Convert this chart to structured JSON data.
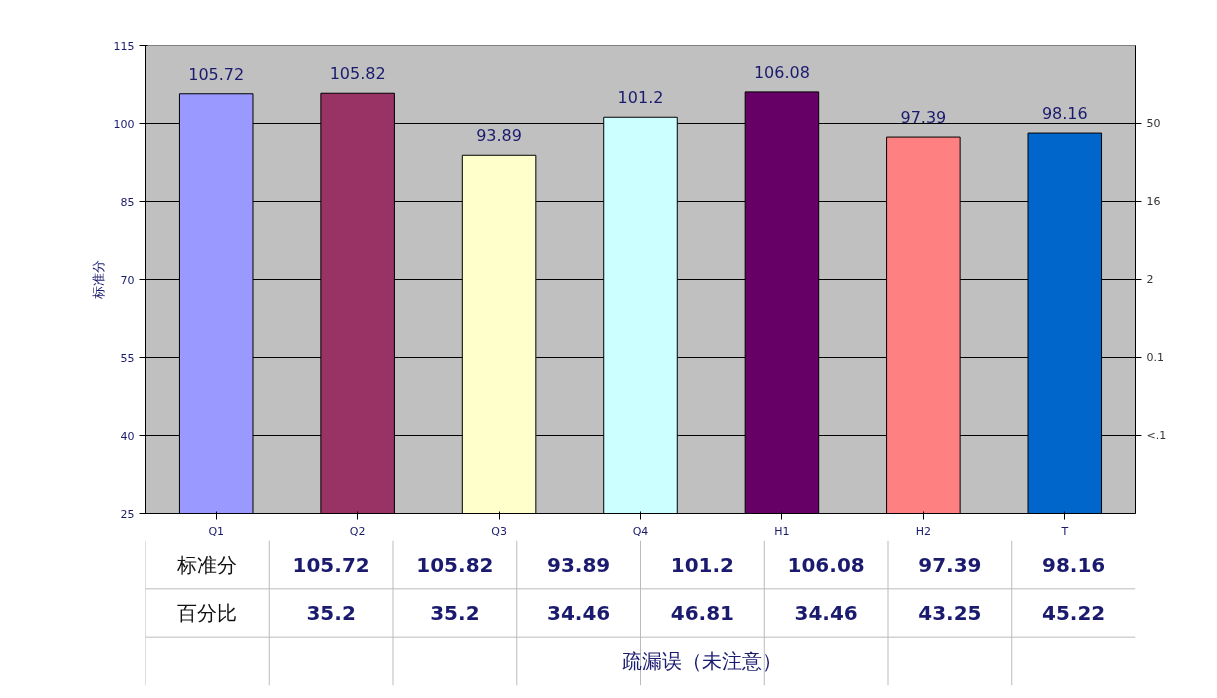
{
  "chart_data": {
    "type": "bar",
    "ylabel": "标准分",
    "categories": [
      "Q1",
      "Q2",
      "Q3",
      "Q4",
      "H1",
      "H2",
      "T"
    ],
    "values": [
      105.72,
      105.82,
      93.89,
      101.2,
      106.08,
      97.39,
      98.16
    ],
    "colors": [
      "#9999ff",
      "#993366",
      "#ffffcc",
      "#ccffff",
      "#660066",
      "#ff8080",
      "#0066cc"
    ],
    "ylim": [
      25,
      115
    ],
    "yticks": [
      25,
      40,
      55,
      70,
      85,
      100,
      115
    ],
    "grid": "y",
    "data_labels": true,
    "annotations": [
      "标准分",
      "105.72",
      "105.82",
      "93.89",
      "101.2",
      "106.08",
      "97.39",
      "98.16",
      "百分比",
      "35.2",
      "35.2",
      "34.46",
      "46.81",
      "34.46",
      "43.25",
      "45.22",
      "50",
      "16",
      "2",
      "0.1",
      "<.1",
      "疏漏误（未注意）"
    ]
  }
}
